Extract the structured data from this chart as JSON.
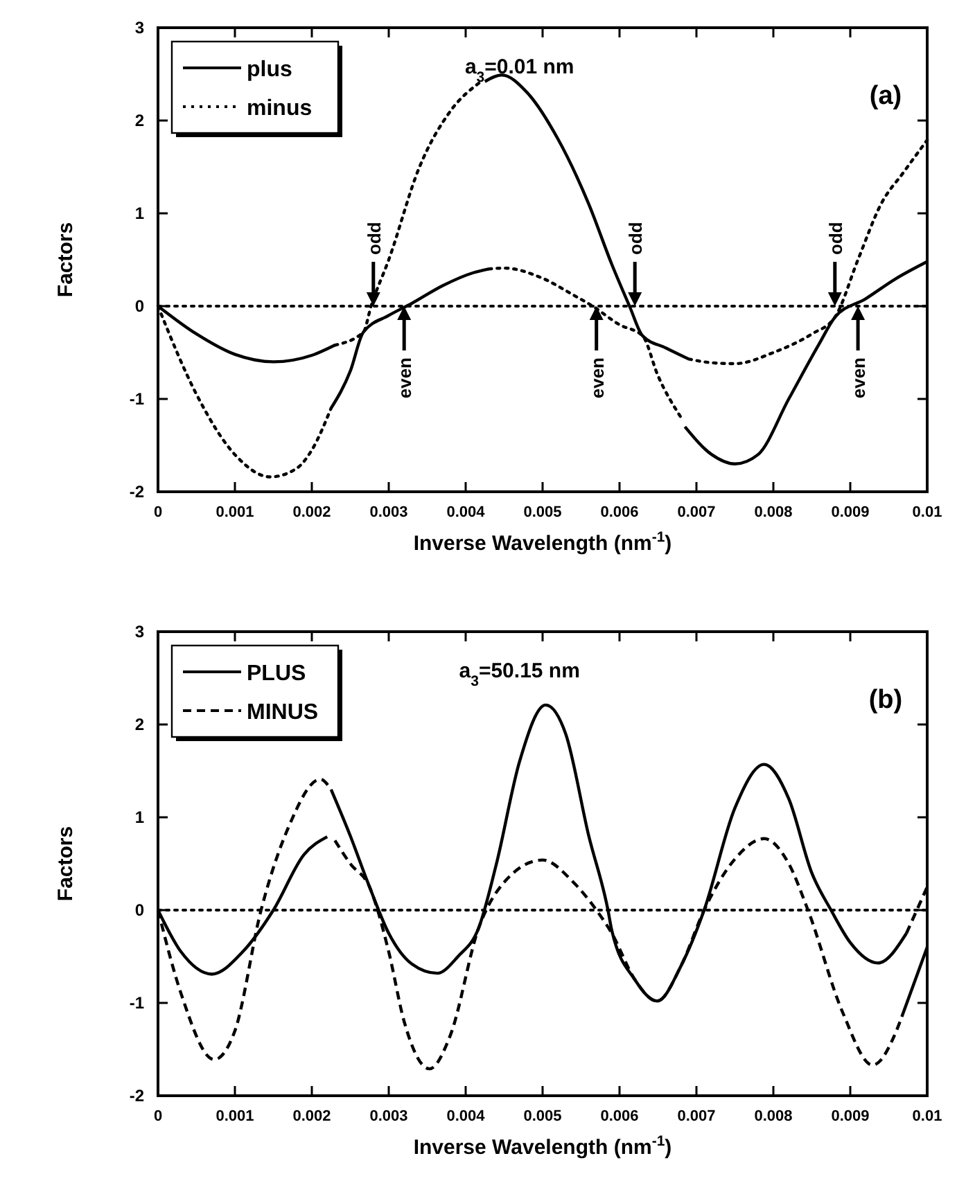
{
  "chart_data": [
    {
      "type": "line",
      "xlabel": "Inverse Wavelength (nm$^{-1}$)",
      "ylabel": "Factors",
      "xlim": [
        0,
        0.01
      ],
      "xticks": [
        0,
        0.001,
        0.002,
        0.003,
        0.004,
        0.005,
        0.006,
        0.007,
        0.008,
        0.009,
        0.01
      ],
      "ylim": [
        -2,
        3
      ],
      "yticks": [
        -2,
        -1,
        0,
        1,
        2,
        3
      ],
      "legend": "top left",
      "ref_lines": [
        {
          "axis": "y",
          "value": 0,
          "line_style": "dotted"
        }
      ],
      "annotations": [
        "a$_{3}$=0.01 nm",
        "(a)",
        {
          "text": "odd",
          "x": 0.0028,
          "y": 0
        },
        {
          "text": "even",
          "x": 0.0032,
          "y": 0
        },
        {
          "text": "odd",
          "x": 0.0062,
          "y": 0
        },
        {
          "text": "even",
          "x": 0.0057,
          "y": 0
        },
        {
          "text": "odd",
          "x": 0.0088,
          "y": 0
        },
        {
          "text": "even",
          "x": 0.0091,
          "y": 0
        }
      ],
      "series": [
        {
          "name": "plus",
          "color": "#000000",
          "line_style": "solid",
          "x": [
            0,
            0.0005,
            0.001,
            0.0015,
            0.002,
            0.0023
          ],
          "values": [
            0,
            -0.3,
            -0.52,
            -0.6,
            -0.53,
            -0.42
          ]
        },
        {
          "name": "minus",
          "color": "#000000",
          "line_style": "dotted",
          "x": [
            0,
            0.0005,
            0.001,
            0.00146,
            0.0018,
            0.002,
            0.00225
          ],
          "values": [
            0,
            -0.95,
            -1.6,
            -1.84,
            -1.75,
            -1.55,
            -1.1
          ]
        },
        {
          "color": "#000000",
          "line_style": "solid",
          "x": [
            0.00225,
            0.0025,
            0.00267,
            0.003,
            0.0033,
            0.0037,
            0.0041,
            0.0043
          ],
          "values": [
            -1.1,
            -0.7,
            -0.28,
            -0.1,
            0.03,
            0.22,
            0.36,
            0.4
          ]
        },
        {
          "color": "#000000",
          "line_style": "solid",
          "x": [
            0.00425,
            0.00447,
            0.0048,
            0.0052,
            0.0056,
            0.0059,
            0.00613,
            0.0063,
            0.0066,
            0.0069
          ],
          "values": [
            2.42,
            2.49,
            2.3,
            1.8,
            1.1,
            0.45,
            0,
            -0.32,
            -0.45,
            -0.57
          ]
        },
        {
          "color": "#000000",
          "line_style": "solid",
          "x": [
            0.00685,
            0.0072,
            0.0075,
            0.0078,
            0.0082,
            0.0086,
            0.0088,
            0.0092,
            0.0096,
            0.01
          ],
          "values": [
            -1.3,
            -1.6,
            -1.7,
            -1.6,
            -1.0,
            -0.4,
            -0.12,
            0.08,
            0.3,
            0.48
          ]
        },
        {
          "color": "#000000",
          "line_style": "dotted",
          "x": [
            0.0023,
            0.00267,
            0.00277,
            0.003,
            0.0034,
            0.0038,
            0.0042
          ],
          "values": [
            -0.42,
            -0.28,
            0,
            0.5,
            1.5,
            2.1,
            2.42
          ]
        },
        {
          "color": "#000000",
          "line_style": "dotted",
          "x": [
            0.0043,
            0.0045,
            0.005,
            0.0054,
            0.00565,
            0.006,
            0.0063,
            0.0065,
            0.0068
          ],
          "values": [
            0.4,
            0.41,
            0.3,
            0.12,
            0,
            -0.2,
            -0.32,
            -0.75,
            -1.2
          ]
        },
        {
          "color": "#000000",
          "line_style": "dotted",
          "x": [
            0.0069,
            0.0072,
            0.0075,
            0.008,
            0.0085,
            0.0088,
            0.0091,
            0.0094,
            0.0097,
            0.01
          ],
          "values": [
            -0.57,
            -0.61,
            -0.62,
            -0.5,
            -0.3,
            -0.12,
            0.5,
            1.1,
            1.45,
            1.79
          ]
        }
      ]
    },
    {
      "type": "line",
      "xlabel": "Inverse Wavelength (nm$^{-1}$)",
      "ylabel": "Factors",
      "xlim": [
        0,
        0.01
      ],
      "xticks": [
        0,
        0.001,
        0.002,
        0.003,
        0.004,
        0.005,
        0.006,
        0.007,
        0.008,
        0.009,
        0.01
      ],
      "ylim": [
        -2,
        3
      ],
      "yticks": [
        -2,
        -1,
        0,
        1,
        2,
        3
      ],
      "legend": "top left",
      "ref_lines": [
        {
          "axis": "y",
          "value": 0,
          "line_style": "dotted"
        }
      ],
      "annotations": [
        "a$_{3}$=50.15 nm",
        "(b)"
      ],
      "series": [
        {
          "name": "PLUS",
          "color": "#000000",
          "line_style": "solid",
          "x": [
            0,
            0.0003,
            0.0007,
            0.0011,
            0.0015,
            0.0019,
            0.0022
          ],
          "values": [
            0,
            -0.45,
            -0.69,
            -0.45,
            0,
            0.6,
            0.79
          ]
        },
        {
          "name": "MINUS",
          "color": "#000000",
          "line_style": "dashed",
          "x": [
            0,
            0.0003,
            0.00073,
            0.001,
            0.00134,
            0.0017,
            0.00211,
            0.00225
          ],
          "values": [
            0,
            -0.9,
            -1.61,
            -1.3,
            0,
            0.9,
            1.41,
            1.3
          ]
        },
        {
          "color": "#000000",
          "line_style": "solid",
          "x": [
            0.00225,
            0.0025,
            0.00275,
            0.003,
            0.0033,
            0.00363,
            0.0039,
            0.00417,
            0.0044,
            0.0047,
            0.00504,
            0.0053,
            0.0056,
            0.00585,
            0.0059,
            0.0062,
            0.00649,
            0.0068,
            0.0071,
            0.0075,
            0.00788,
            0.0082,
            0.0085,
            0.00875,
            0.009,
            0.00936,
            0.00973
          ],
          "values": [
            1.3,
            0.8,
            0.25,
            -0.25,
            -0.58,
            -0.68,
            -0.5,
            -0.19,
            0.5,
            1.6,
            2.21,
            1.9,
            0.8,
            0,
            -0.22,
            -0.75,
            -0.98,
            -0.6,
            0,
            1.1,
            1.57,
            1.2,
            0.4,
            0,
            -0.35,
            -0.57,
            -0.25
          ]
        },
        {
          "color": "#000000",
          "line_style": "solid",
          "x": [
            0.00967,
            0.01
          ],
          "values": [
            -1.15,
            -0.4
          ]
        },
        {
          "color": "#000000",
          "line_style": "dashed",
          "x": [
            0.0023,
            0.0025,
            0.00275,
            0.003,
            0.0032,
            0.00353,
            0.0038,
            0.00417,
            0.0045,
            0.005,
            0.0054,
            0.0057,
            0.0059,
            0.0062,
            0.00649,
            0.0068,
            0.0071,
            0.0075,
            0.00788,
            0.0082,
            0.00845,
            0.0089,
            0.00929,
            0.0096,
            0.00967
          ],
          "values": [
            0.75,
            0.5,
            0.25,
            -0.45,
            -1.2,
            -1.71,
            -1.35,
            -0.19,
            0.3,
            0.54,
            0.3,
            0,
            -0.25,
            -0.75,
            -0.98,
            -0.6,
            0,
            0.55,
            0.77,
            0.5,
            0,
            -1.1,
            -1.67,
            -1.3,
            -1.15
          ]
        },
        {
          "color": "#000000",
          "line_style": "dashed",
          "x": [
            0.00973,
            0.01
          ],
          "values": [
            -0.25,
            0.25
          ]
        }
      ]
    }
  ]
}
